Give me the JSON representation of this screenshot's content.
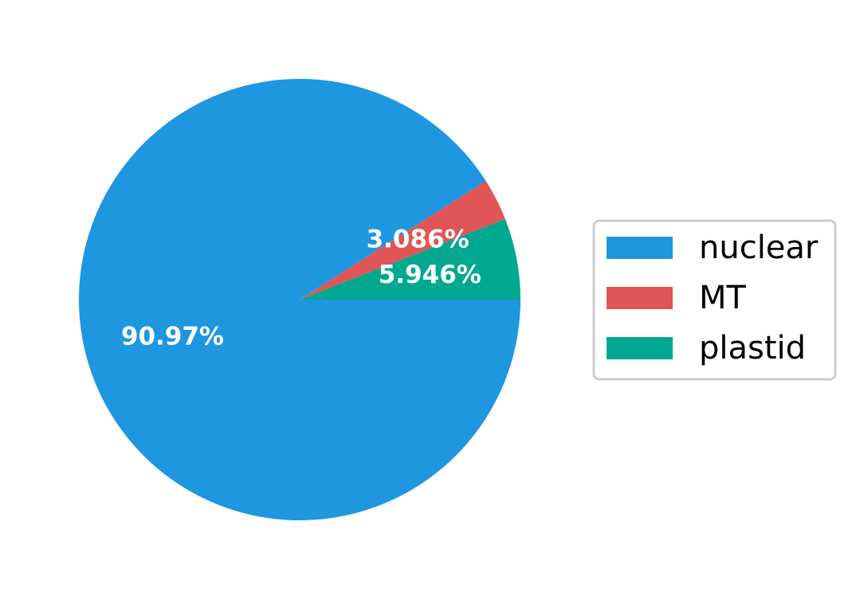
{
  "chart_data": {
    "type": "pie",
    "slices": [
      {
        "label": "nuclear",
        "value": 90.97,
        "value_label": "90.97%",
        "color": "#1E97E0"
      },
      {
        "label": "MT",
        "value": 3.086,
        "value_label": "3.086%",
        "color": "#E05555"
      },
      {
        "label": "plastid",
        "value": 5.946,
        "value_label": "5.946%",
        "color": "#00A890"
      }
    ],
    "start_angle_deg": 0,
    "direction": "clockwise",
    "legend_placement": "right",
    "title": ""
  }
}
